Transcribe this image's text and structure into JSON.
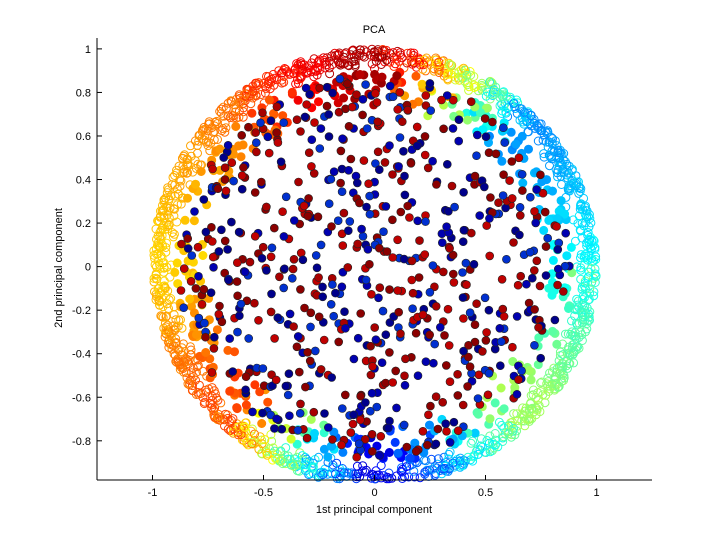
{
  "chart_data": {
    "type": "scatter",
    "title": "PCA",
    "xlabel": "1st principal component",
    "ylabel": "2nd principal component",
    "xlim": [
      -1.25,
      1.25
    ],
    "ylim": [
      -0.98,
      1.05
    ],
    "xticks": [
      -1,
      -0.5,
      0,
      0.5,
      1
    ],
    "xtick_labels": [
      "-1",
      "-0.5",
      "0",
      "0.5",
      "1"
    ],
    "yticks": [
      -0.8,
      -0.6,
      -0.4,
      -0.2,
      0,
      0.2,
      0.4,
      0.6,
      0.8,
      1
    ],
    "ytick_labels": [
      "-0.8",
      "-0.6",
      "-0.4",
      "-0.2",
      "0",
      "0.2",
      "0.4",
      "0.6",
      "0.8",
      "1"
    ],
    "grid": false,
    "legend": "none",
    "colormap": "jet",
    "point_groups": [
      {
        "label": "outer ring (open circles, colored by angle)",
        "style": "open",
        "count": 1400,
        "r_range": [
          0.9,
          1.0
        ]
      },
      {
        "label": "inner ring (filled circles, colored by angle)",
        "style": "filled",
        "count": 350,
        "r_range": [
          0.72,
          0.9
        ]
      },
      {
        "label": "interior (filled circles, dark red / dark blue)",
        "style": "filled",
        "count": 700,
        "r_range": [
          0.0,
          0.88
        ],
        "colors": [
          "#8b0000",
          "#a80000",
          "#c00000",
          "#00008b",
          "#0000b0",
          "#0030d0"
        ]
      }
    ]
  }
}
